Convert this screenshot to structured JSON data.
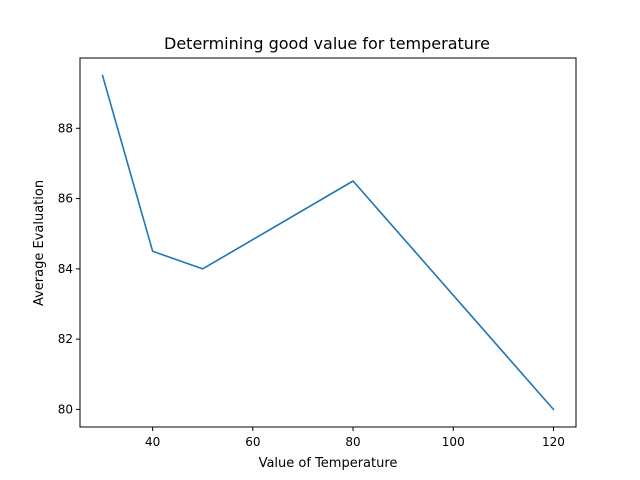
{
  "chart_data": {
    "type": "line",
    "title": "Determining good value for temperature",
    "xlabel": "Value of Temperature",
    "ylabel": "Average Evaluation",
    "xlim": [
      25.5,
      124.5
    ],
    "ylim": [
      79.5,
      90.0
    ],
    "xticks": [
      40,
      60,
      80,
      100,
      120
    ],
    "yticks": [
      80,
      82,
      84,
      86,
      88
    ],
    "grid": false,
    "series": [
      {
        "color": "#1f77b4",
        "x": [
          30,
          40,
          50,
          80,
          120
        ],
        "y": [
          89.5,
          84.5,
          84.0,
          86.5,
          80.0
        ]
      }
    ]
  }
}
